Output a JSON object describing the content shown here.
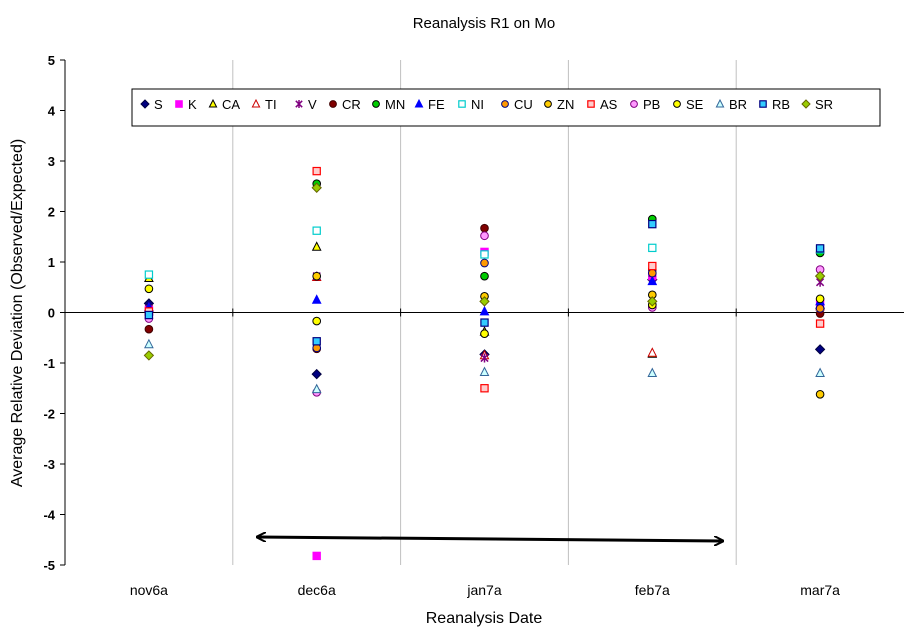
{
  "chart_data": {
    "type": "scatter",
    "title": "Reanalysis R1 on Mo",
    "xlabel": "Reanalysis Date",
    "ylabel": "Average Relative Deviation (Observed/Expected)",
    "categories": [
      "nov6a",
      "dec6a",
      "jan7a",
      "feb7a",
      "mar7a"
    ],
    "ylim": [
      -5,
      5
    ],
    "yticks": [
      "5",
      "4",
      "3",
      "2",
      "1",
      "0",
      "-1",
      "-2",
      "-3",
      "-4",
      "-5"
    ],
    "ytick_values": [
      5,
      4,
      3,
      2,
      1,
      0,
      -1,
      -2,
      -3,
      -4,
      -5
    ],
    "grid": "vertical",
    "legend_position": "top",
    "annotation": "double-headed arrow spanning dec6a to feb7a",
    "series": [
      {
        "name": "S",
        "marker": "diamond",
        "fill": "#000080",
        "stroke": "#000040",
        "values": [
          0.18,
          -1.22,
          -0.83,
          0.65,
          -0.73
        ]
      },
      {
        "name": "K",
        "marker": "square",
        "fill": "#ff00ff",
        "stroke": "#ff00ff",
        "values": [
          0.05,
          -4.82,
          1.2,
          0.72,
          0.2
        ]
      },
      {
        "name": "CA",
        "marker": "triangle",
        "fill": "#ffff00",
        "stroke": "#000000",
        "values": [
          0.68,
          1.3,
          -0.38,
          -0.82,
          0.15
        ]
      },
      {
        "name": "TI",
        "marker": "triangle",
        "fill": "#ffffff",
        "stroke": "#cc0000",
        "values": [
          0.1,
          0.7,
          -0.85,
          -0.8,
          0.12
        ]
      },
      {
        "name": "V",
        "marker": "x",
        "fill": "none",
        "stroke": "#800080",
        "values": [
          0.08,
          0.72,
          -0.9,
          0.78,
          0.6
        ]
      },
      {
        "name": "CR",
        "marker": "circle",
        "fill": "#800000",
        "stroke": "#400000",
        "values": [
          -0.33,
          -0.72,
          1.67,
          0.85,
          -0.02
        ]
      },
      {
        "name": "MN",
        "marker": "circle",
        "fill": "#00cc00",
        "stroke": "#000000",
        "values": [
          0.0,
          2.55,
          0.72,
          1.85,
          1.18
        ]
      },
      {
        "name": "FE",
        "marker": "triangle",
        "fill": "#0000ff",
        "stroke": "#0000ff",
        "values": [
          0.1,
          0.25,
          0.02,
          0.62,
          0.22
        ]
      },
      {
        "name": "NI",
        "marker": "square",
        "fill": "#ffffff",
        "stroke": "#00cccc",
        "values": [
          0.75,
          1.62,
          1.15,
          1.28,
          1.25
        ]
      },
      {
        "name": "CU",
        "marker": "circle",
        "fill": "#ff9900",
        "stroke": "#000080",
        "values": [
          -0.05,
          -0.7,
          0.98,
          0.78,
          0.08
        ]
      },
      {
        "name": "ZN",
        "marker": "circle",
        "fill": "#ffcc00",
        "stroke": "#000000",
        "values": [
          0.02,
          0.72,
          0.32,
          0.35,
          -1.62
        ]
      },
      {
        "name": "AS",
        "marker": "square",
        "fill": "#ffcccc",
        "stroke": "#ff0000",
        "values": [
          0.02,
          2.8,
          -1.5,
          0.92,
          -0.22
        ]
      },
      {
        "name": "PB",
        "marker": "circle",
        "fill": "#ff99ff",
        "stroke": "#800080",
        "values": [
          -0.12,
          -1.58,
          1.52,
          0.1,
          0.85
        ]
      },
      {
        "name": "SE",
        "marker": "circle",
        "fill": "#ffff00",
        "stroke": "#000000",
        "values": [
          0.47,
          -0.17,
          -0.42,
          0.15,
          0.27
        ]
      },
      {
        "name": "BR",
        "marker": "triangle",
        "fill": "#ccffff",
        "stroke": "#336699",
        "values": [
          -0.63,
          -1.52,
          -1.18,
          -1.2,
          -1.2
        ]
      },
      {
        "name": "RB",
        "marker": "square",
        "fill": "#33ccff",
        "stroke": "#000080",
        "values": [
          -0.05,
          -0.57,
          -0.2,
          1.75,
          1.27
        ]
      },
      {
        "name": "SR",
        "marker": "diamond",
        "fill": "#99cc00",
        "stroke": "#666600",
        "values": [
          -0.85,
          2.47,
          0.22,
          0.22,
          0.72
        ]
      }
    ]
  }
}
